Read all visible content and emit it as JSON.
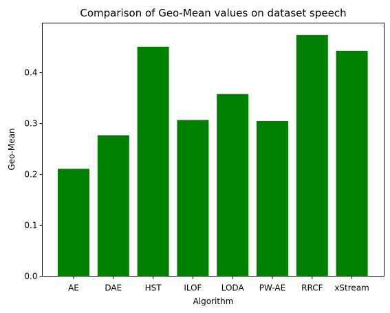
{
  "chart_data": {
    "type": "bar",
    "title": "Comparison of Geo-Mean values on dataset speech",
    "xlabel": "Algorithm",
    "ylabel": "Geo-Mean",
    "categories": [
      "AE",
      "DAE",
      "HST",
      "ILOF",
      "LODA",
      "PW-AE",
      "RRCF",
      "xStream"
    ],
    "values": [
      0.211,
      0.277,
      0.451,
      0.307,
      0.358,
      0.305,
      0.474,
      0.443
    ],
    "ylim": [
      0,
      0.4975
    ],
    "yticks": [
      0.0,
      0.1,
      0.2,
      0.3,
      0.4
    ],
    "ytick_labels": [
      "0.0",
      "0.1",
      "0.2",
      "0.3",
      "0.4"
    ],
    "bar_color": "#008000",
    "grid": false,
    "legend": "none"
  }
}
